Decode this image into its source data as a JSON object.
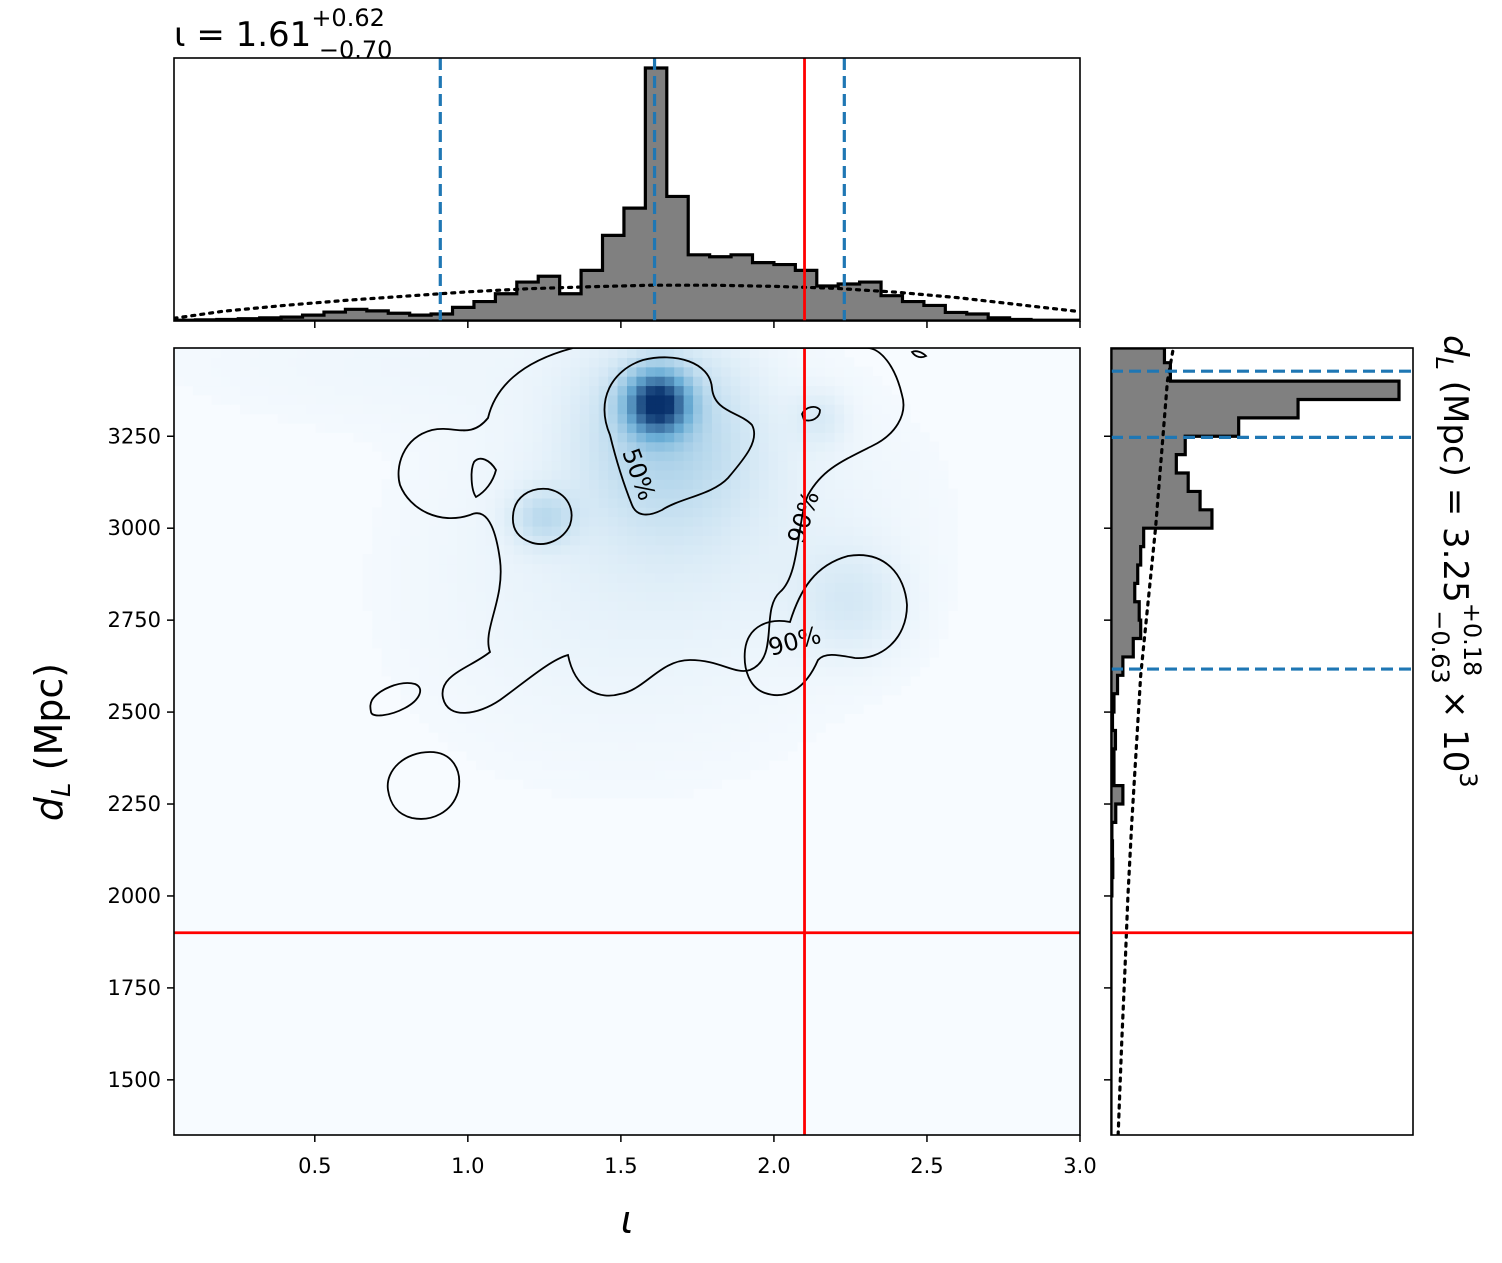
{
  "chart_data": {
    "type": "corner",
    "colors": {
      "histogram_fill": "#808080",
      "histogram_edge": "#000000",
      "truth_line": "#ff0000",
      "quantile_line": "#1f77b4",
      "density_low": "#f7fbff",
      "density_high": "#08306b",
      "contour": "#000000",
      "prior": "#000000"
    },
    "x_param": {
      "label_sym": "ι",
      "xlim": [
        0.04,
        3.0
      ],
      "ticks": [
        "0.5",
        "1.0",
        "1.5",
        "2.0",
        "2.5",
        "3.0"
      ],
      "tick_values": [
        0.5,
        1.0,
        1.5,
        2.0,
        2.5,
        3.0
      ],
      "title_main": "ι = 1.61",
      "title_sup": "+0.62",
      "title_sub": "−0.70",
      "median": 1.61,
      "quantiles": [
        0.91,
        1.61,
        2.23
      ],
      "truth": 2.1
    },
    "y_param": {
      "label_main": "d",
      "label_sub": "L",
      "label_unit": " (Mpc)",
      "ylim": [
        1350,
        3490
      ],
      "ticks": [
        "1500",
        "1750",
        "2000",
        "2250",
        "2500",
        "2750",
        "3000",
        "3250"
      ],
      "tick_values": [
        1500,
        1750,
        2000,
        2250,
        2500,
        2750,
        3000,
        3250
      ],
      "title_main": "d",
      "title_sub_l": "L",
      "title_mid": " (Mpc) = 3.25",
      "title_sup": "+0.18",
      "title_sub": "−0.63",
      "title_exp": "× 10",
      "title_pow": "3",
      "median": 3247,
      "quantiles": [
        2617,
        3247,
        3427
      ],
      "truth": 1900
    },
    "iota_hist": {
      "edges": [
        0.04,
        0.11,
        0.18,
        0.25,
        0.32,
        0.39,
        0.46,
        0.53,
        0.6,
        0.67,
        0.74,
        0.81,
        0.88,
        0.95,
        1.02,
        1.09,
        1.16,
        1.23,
        1.3,
        1.37,
        1.44,
        1.51,
        1.58,
        1.65,
        1.72,
        1.79,
        1.86,
        1.93,
        2.0,
        2.07,
        2.14,
        2.21,
        2.28,
        2.35,
        2.42,
        2.49,
        2.56,
        2.63,
        2.7,
        2.77,
        2.84,
        2.91,
        3.0
      ],
      "counts": [
        0.2,
        0.3,
        0.4,
        0.6,
        0.8,
        1.0,
        1.5,
        2.3,
        3.0,
        2.6,
        2.0,
        1.5,
        1.8,
        3.5,
        5.0,
        7.0,
        10.0,
        11.5,
        7.0,
        13.0,
        22.0,
        29.0,
        65.0,
        32.0,
        17.0,
        16.5,
        17.0,
        15.0,
        14.5,
        13.0,
        9.0,
        9.5,
        10.0,
        6.5,
        5.0,
        4.0,
        2.2,
        1.8,
        0.8,
        0.4,
        0.2,
        0.2
      ]
    },
    "iota_prior": {
      "x": [
        0.04,
        0.2,
        0.4,
        0.6,
        0.8,
        1.0,
        1.2,
        1.4,
        1.6,
        1.8,
        2.0,
        2.2,
        2.4,
        2.6,
        2.8,
        3.0
      ],
      "y": [
        0.7,
        2.5,
        4.0,
        5.3,
        6.4,
        7.5,
        8.3,
        8.8,
        9.2,
        9.2,
        8.9,
        8.4,
        7.4,
        6.0,
        4.2,
        2.4
      ]
    },
    "dl_hist": {
      "edges": [
        1350,
        1400,
        1450,
        1500,
        1550,
        1600,
        1650,
        1700,
        1750,
        1800,
        1850,
        1900,
        1950,
        2000,
        2050,
        2100,
        2150,
        2200,
        2250,
        2300,
        2350,
        2400,
        2450,
        2500,
        2550,
        2600,
        2650,
        2700,
        2750,
        2800,
        2850,
        2900,
        2950,
        3000,
        3050,
        3100,
        3150,
        3200,
        3250,
        3300,
        3350,
        3400,
        3450,
        3490
      ],
      "counts": [
        0,
        0,
        0,
        0,
        0,
        0,
        0,
        0,
        0,
        0,
        0,
        0,
        0,
        0.3,
        0.6,
        0.5,
        0.3,
        1.6,
        4.0,
        1.0,
        1.0,
        1.5,
        0.5,
        1.0,
        2.2,
        4.0,
        7.5,
        10.0,
        9.5,
        8.0,
        9.0,
        10.0,
        11.0,
        34.0,
        30.0,
        26.0,
        22.0,
        25.0,
        43.0,
        63.0,
        97.0,
        20.0,
        18.0
      ]
    },
    "dl_prior": {
      "y": [
        1350,
        1600,
        1800,
        2000,
        2200,
        2400,
        2600,
        2800,
        3000,
        3200,
        3400,
        3490
      ],
      "x": [
        2.4,
        3.6,
        4.7,
        5.7,
        7.0,
        8.5,
        10.0,
        12.5,
        15.0,
        17.0,
        19.0,
        21.0
      ]
    },
    "density_blobs": [
      {
        "x": 1.62,
        "y": 3340,
        "sx": 0.065,
        "sy": 55,
        "w": 1.0
      },
      {
        "x": 1.65,
        "y": 3250,
        "sx": 0.18,
        "sy": 160,
        "w": 0.16
      },
      {
        "x": 1.25,
        "y": 3030,
        "sx": 0.07,
        "sy": 50,
        "w": 0.12
      },
      {
        "x": 2.25,
        "y": 2800,
        "sx": 0.12,
        "sy": 100,
        "w": 0.06
      },
      {
        "x": 2.15,
        "y": 3300,
        "sx": 0.06,
        "sy": 50,
        "w": 0.05
      },
      {
        "x": 1.5,
        "y": 2800,
        "sx": 0.45,
        "sy": 300,
        "w": 0.02
      },
      {
        "x": 1.75,
        "y": 3050,
        "sx": 0.4,
        "sy": 220,
        "w": 0.03
      },
      {
        "x": 0.9,
        "y": 3450,
        "sx": 0.6,
        "sy": 120,
        "w": 0.012
      }
    ],
    "contour_labels": [
      "50%",
      "90%",
      "90%"
    ]
  }
}
